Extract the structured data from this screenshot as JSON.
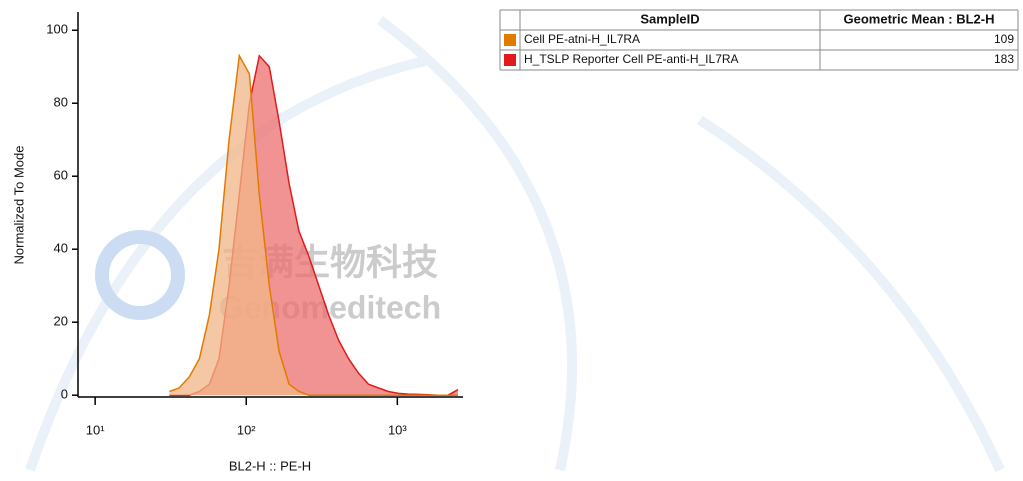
{
  "chart_data": {
    "type": "area",
    "ylabel": "Normalized To Mode",
    "xlabel": "BL2-H :: PE-H",
    "xscale": "log",
    "x": [
      31,
      36,
      42,
      49,
      57,
      66,
      77,
      90,
      105,
      122,
      142,
      165,
      192,
      223,
      260,
      302,
      351,
      409,
      476,
      554,
      644,
      750,
      873,
      1016,
      1181,
      1374,
      1599,
      1861,
      2165,
      2519
    ],
    "series": [
      {
        "name": "H_TSLP Reporter Cell PE-anti-H_IL7RA",
        "color": "#e01b1b",
        "fill": "#ee6f6f",
        "values": [
          0,
          0,
          0,
          1,
          3,
          10,
          30,
          55,
          80,
          93,
          90,
          75,
          58,
          45,
          38,
          30,
          22,
          15,
          10,
          6,
          3,
          2,
          1,
          0.5,
          0.3,
          0.2,
          0.1,
          0,
          0,
          1.5
        ]
      },
      {
        "name": "Cell PE-atni-H_IL7RA",
        "color": "#e07b00",
        "fill": "#f2b587",
        "values": [
          1,
          2,
          5,
          10,
          22,
          40,
          70,
          93,
          88,
          55,
          30,
          12,
          3,
          1,
          0,
          0,
          0,
          0,
          0,
          0,
          0,
          0,
          0,
          0,
          0,
          0,
          0,
          0,
          0,
          0
        ]
      }
    ],
    "xlim": [
      7.7,
      2720
    ],
    "xticks": [
      {
        "value": 10,
        "label": "10¹"
      },
      {
        "value": 100,
        "label": "10²"
      },
      {
        "value": 1000,
        "label": "10³"
      }
    ],
    "ylim": [
      -0.5,
      105
    ],
    "yticks": [
      0,
      20,
      40,
      60,
      80,
      100
    ]
  },
  "table": {
    "header": [
      "SampleID",
      "Geometric Mean : BL2-H"
    ],
    "rows": [
      {
        "color": "#e07b00",
        "cells": [
          "Cell PE-atni-H_IL7RA",
          109
        ]
      },
      {
        "color": "#e01b1b",
        "cells": [
          "H_TSLP Reporter Cell PE-anti-H_IL7RA",
          183
        ]
      }
    ]
  },
  "watermark": {
    "cn": "吉满生物科技",
    "en": "Genomeditech"
  }
}
